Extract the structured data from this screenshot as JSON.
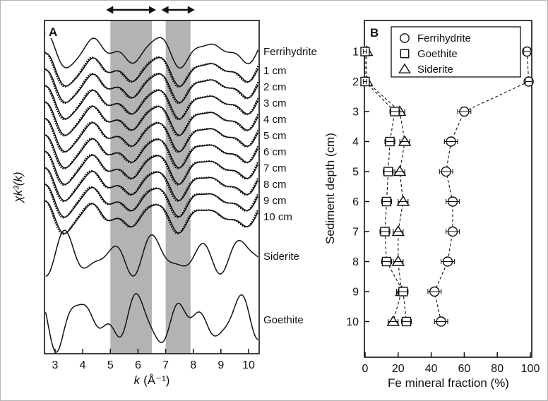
{
  "chart_data": [
    {
      "panel_label": "A",
      "type": "line",
      "xlabel_var": "k",
      "xlabel_unit": "(Å⁻¹)",
      "ylabel": "χk³(k)",
      "x_ticks": [
        3,
        4,
        5,
        6,
        7,
        8,
        9,
        10
      ],
      "x_range": [
        2.6,
        10.4
      ],
      "shaded_bands_k": [
        [
          5.0,
          6.5
        ],
        [
          7.0,
          7.9
        ]
      ],
      "band_color": "#b3b3b3",
      "line_color": "#111111",
      "series": [
        {
          "label": "Ferrihydrite",
          "profile": "ferrihydrite",
          "fit": false
        },
        {
          "label": "1 cm",
          "profile": "sample",
          "fit": true
        },
        {
          "label": "2 cm",
          "profile": "sample",
          "fit": true
        },
        {
          "label": "3 cm",
          "profile": "sample",
          "fit": true
        },
        {
          "label": "4 cm",
          "profile": "sample",
          "fit": true
        },
        {
          "label": "5 cm",
          "profile": "sample",
          "fit": true
        },
        {
          "label": "6 cm",
          "profile": "sample",
          "fit": true
        },
        {
          "label": "7 cm",
          "profile": "sample",
          "fit": true
        },
        {
          "label": "8 cm",
          "profile": "sample",
          "fit": true
        },
        {
          "label": "9 cm",
          "profile": "sample",
          "fit": true
        },
        {
          "label": "10 cm",
          "profile": "sample",
          "fit": true
        },
        {
          "label": "Siderite",
          "profile": "siderite",
          "fit": false
        },
        {
          "label": "Goethite",
          "profile": "goethite",
          "fit": false
        }
      ]
    },
    {
      "panel_label": "B",
      "type": "scatter",
      "xlabel": "Fe mineral fraction (%)",
      "ylabel": "Sediment depth (cm)",
      "x_ticks": [
        0,
        20,
        40,
        60,
        80,
        100
      ],
      "y_ticks": [
        1,
        2,
        3,
        4,
        5,
        6,
        7,
        8,
        9,
        10
      ],
      "x_range": [
        0,
        100
      ],
      "depths": [
        1,
        2,
        3,
        4,
        5,
        6,
        7,
        8,
        9,
        10
      ],
      "series": [
        {
          "name": "Ferrihydrite",
          "marker": "circle",
          "values": [
            98,
            99,
            60,
            52,
            49,
            53,
            53,
            50,
            42,
            46
          ],
          "xerr": [
            2,
            2,
            4,
            4,
            4,
            4,
            4,
            4,
            4,
            4
          ]
        },
        {
          "name": "Goethite",
          "marker": "square",
          "values": [
            0,
            0,
            18,
            15,
            14,
            13,
            12,
            13,
            23,
            25
          ],
          "xerr": [
            1,
            1,
            3,
            3,
            3,
            3,
            3,
            3,
            3,
            3
          ]
        },
        {
          "name": "Siderite",
          "marker": "triangle",
          "values": [
            1,
            1,
            21,
            24,
            21,
            23,
            20,
            20,
            22,
            17
          ],
          "xerr": [
            1,
            1,
            3,
            3,
            3,
            3,
            3,
            3,
            3,
            3
          ]
        }
      ],
      "legend": [
        {
          "label": "Ferrihydrite",
          "marker": "circle"
        },
        {
          "label": "Goethite",
          "marker": "square"
        },
        {
          "label": "Siderite",
          "marker": "triangle"
        }
      ]
    }
  ]
}
